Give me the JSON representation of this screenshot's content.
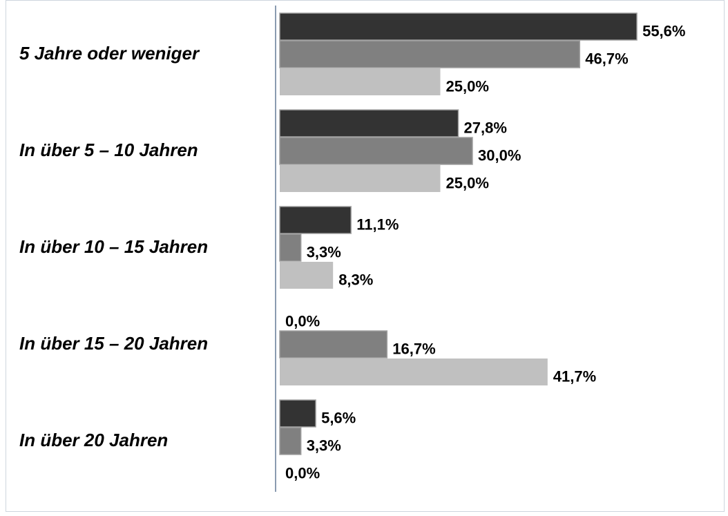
{
  "chart_data": {
    "type": "bar",
    "orientation": "horizontal",
    "categories": [
      "5 Jahre oder weniger",
      "In über 5 – 10 Jahren",
      "In über 10 – 15 Jahren",
      "In über 15 – 20 Jahren",
      "In über 20 Jahren"
    ],
    "series": [
      {
        "color": "#333333",
        "values": [
          55.6,
          27.8,
          11.1,
          0.0,
          5.6
        ],
        "value_labels": [
          "55,6%",
          "27,8%",
          "11,1%",
          "0,0%",
          "5,6%"
        ]
      },
      {
        "color": "#808080",
        "values": [
          46.7,
          30.0,
          3.3,
          16.7,
          3.3
        ],
        "value_labels": [
          "46,7%",
          "30,0%",
          "3,3%",
          "16,7%",
          "3,3%"
        ]
      },
      {
        "color": "#c0c0c0",
        "values": [
          25.0,
          25.0,
          8.3,
          41.7,
          0.0
        ],
        "value_labels": [
          "25,0%",
          "25,0%",
          "8,3%",
          "41,7%",
          "0,0%"
        ]
      }
    ]
  }
}
